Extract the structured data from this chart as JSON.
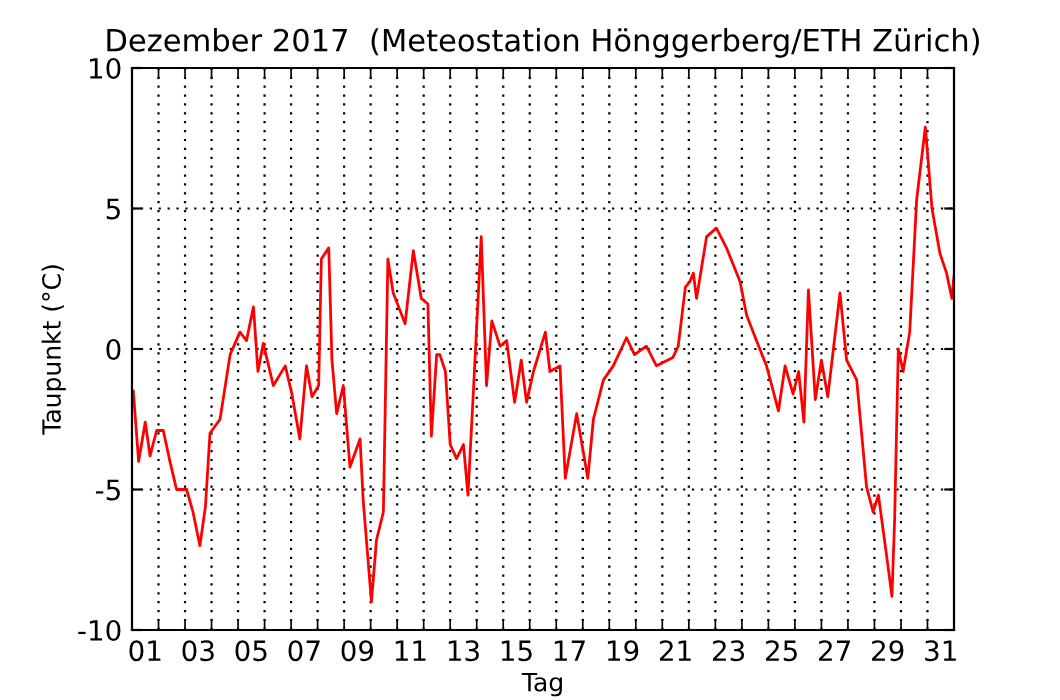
{
  "chart_data": {
    "type": "line",
    "title": "Dezember 2017  (Meteostation Hönggerberg/ETH Zürich)",
    "xlabel": "Tag",
    "ylabel": "Taupunkt (°C)",
    "xlim": [
      0,
      31
    ],
    "ylim": [
      -10,
      10
    ],
    "yticks": [
      -10,
      -5,
      0,
      5,
      10
    ],
    "xticks": [
      {
        "value": 0.5,
        "label": "01"
      },
      {
        "value": 2.5,
        "label": "03"
      },
      {
        "value": 4.5,
        "label": "05"
      },
      {
        "value": 6.5,
        "label": "07"
      },
      {
        "value": 8.5,
        "label": "09"
      },
      {
        "value": 10.5,
        "label": "11"
      },
      {
        "value": 12.5,
        "label": "13"
      },
      {
        "value": 14.5,
        "label": "15"
      },
      {
        "value": 16.5,
        "label": "17"
      },
      {
        "value": 18.5,
        "label": "19"
      },
      {
        "value": 20.5,
        "label": "21"
      },
      {
        "value": 22.5,
        "label": "23"
      },
      {
        "value": 24.5,
        "label": "25"
      },
      {
        "value": 26.5,
        "label": "27"
      },
      {
        "value": 28.5,
        "label": "29"
      },
      {
        "value": 30.5,
        "label": "31"
      },
      {
        "value": 1,
        "label": null
      },
      {
        "value": 2,
        "label": null
      },
      {
        "value": 3,
        "label": null
      },
      {
        "value": 4,
        "label": null
      },
      {
        "value": 5,
        "label": null
      },
      {
        "value": 6,
        "label": null
      },
      {
        "value": 7,
        "label": null
      },
      {
        "value": 8,
        "label": null
      },
      {
        "value": 9,
        "label": null
      },
      {
        "value": 10,
        "label": null
      },
      {
        "value": 11,
        "label": null
      },
      {
        "value": 12,
        "label": null
      },
      {
        "value": 13,
        "label": null
      },
      {
        "value": 14,
        "label": null
      },
      {
        "value": 15,
        "label": null
      },
      {
        "value": 16,
        "label": null
      },
      {
        "value": 17,
        "label": null
      },
      {
        "value": 18,
        "label": null
      },
      {
        "value": 19,
        "label": null
      },
      {
        "value": 20,
        "label": null
      },
      {
        "value": 21,
        "label": null
      },
      {
        "value": 22,
        "label": null
      },
      {
        "value": 23,
        "label": null
      },
      {
        "value": 24,
        "label": null
      },
      {
        "value": 25,
        "label": null
      },
      {
        "value": 26,
        "label": null
      },
      {
        "value": 27,
        "label": null
      },
      {
        "value": 28,
        "label": null
      },
      {
        "value": 29,
        "label": null
      },
      {
        "value": 30,
        "label": null
      }
    ],
    "grid": true,
    "line_style": "solid",
    "series": [
      {
        "color": "#ff0000",
        "x": [
          0.05,
          0.25,
          0.5,
          0.68,
          0.93,
          1.18,
          1.43,
          1.68,
          2.06,
          2.3,
          2.56,
          2.77,
          2.94,
          3.32,
          3.7,
          4.07,
          4.32,
          4.58,
          4.75,
          4.95,
          5.33,
          5.78,
          6.03,
          6.33,
          6.58,
          6.79,
          7.04,
          7.14,
          7.42,
          7.54,
          7.72,
          7.97,
          8.22,
          8.6,
          8.72,
          9.03,
          9.22,
          9.48,
          9.65,
          9.85,
          10.3,
          10.61,
          10.91,
          11.16,
          11.29,
          11.49,
          11.61,
          11.82,
          12.0,
          12.24,
          12.5,
          12.67,
          12.87,
          13.17,
          13.37,
          13.57,
          13.88,
          14.13,
          14.43,
          14.68,
          14.88,
          15.14,
          15.59,
          15.76,
          16.14,
          16.34,
          16.77,
          17.19,
          17.4,
          17.78,
          18.15,
          18.65,
          18.95,
          19.4,
          19.78,
          20.4,
          20.6,
          20.87,
          21.04,
          21.17,
          21.29,
          21.67,
          22.04,
          22.42,
          22.93,
          23.18,
          23.55,
          23.93,
          24.38,
          24.63,
          24.93,
          25.14,
          25.34,
          25.51,
          25.77,
          26.0,
          26.24,
          26.7,
          26.95,
          27.33,
          27.7,
          27.95,
          28.15,
          28.45,
          28.66,
          28.76,
          28.9,
          29.08,
          29.33,
          29.59,
          29.92,
          30.17,
          30.47,
          30.72,
          30.92,
          31.0
        ],
        "values": [
          -1.5,
          -4.0,
          -2.6,
          -3.8,
          -2.9,
          -2.9,
          -4.0,
          -5.0,
          -5.0,
          -5.8,
          -7.0,
          -5.6,
          -3.0,
          -2.5,
          -0.2,
          0.6,
          0.3,
          1.5,
          -0.8,
          0.2,
          -1.3,
          -0.6,
          -1.6,
          -3.2,
          -0.6,
          -1.7,
          -1.3,
          3.2,
          3.6,
          -0.4,
          -2.3,
          -1.3,
          -4.2,
          -3.2,
          -5.4,
          -9.0,
          -6.8,
          -5.8,
          3.2,
          2.0,
          0.9,
          3.5,
          1.8,
          1.6,
          -3.1,
          -0.2,
          -0.2,
          -0.8,
          -3.4,
          -3.9,
          -3.4,
          -5.2,
          -1.6,
          4.0,
          -1.3,
          1.0,
          0.1,
          0.3,
          -1.9,
          -0.4,
          -1.9,
          -0.8,
          0.6,
          -0.8,
          -0.6,
          -4.6,
          -2.3,
          -4.6,
          -2.5,
          -1.1,
          -0.6,
          0.4,
          -0.2,
          0.1,
          -0.6,
          -0.3,
          0.1,
          2.2,
          2.4,
          2.7,
          1.8,
          4.0,
          4.3,
          3.6,
          2.4,
          1.2,
          0.3,
          -0.6,
          -2.2,
          -0.6,
          -1.6,
          -0.8,
          -2.6,
          2.1,
          -1.8,
          -0.4,
          -1.7,
          2.0,
          -0.4,
          -1.1,
          -4.9,
          -5.8,
          -5.2,
          -7.3,
          -8.8,
          -6.1,
          0.0,
          -0.8,
          0.6,
          5.3,
          7.9,
          5.0,
          3.4,
          2.7,
          1.8,
          2.6
        ]
      }
    ]
  }
}
